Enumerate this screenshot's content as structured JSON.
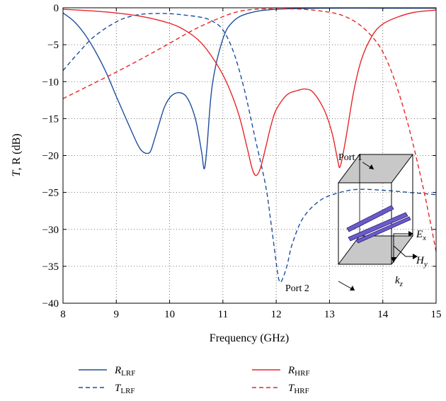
{
  "chart_data": {
    "type": "line",
    "xlabel": "Frequency (GHz)",
    "ylabel_main": "T",
    "ylabel_rest": ", R (dB)",
    "xlim": [
      8,
      15
    ],
    "ylim": [
      -40,
      0
    ],
    "xticks": [
      8,
      9,
      10,
      11,
      12,
      13,
      14,
      15
    ],
    "yticks": [
      0,
      -5,
      -10,
      -15,
      -20,
      -25,
      -30,
      -35,
      -40
    ],
    "ytick_labels": [
      "0",
      "−5",
      "−10",
      "−15",
      "−20",
      "−25",
      "−30",
      "−35",
      "−40"
    ],
    "grid": true,
    "legend_position": "bottom",
    "series": [
      {
        "name": "R",
        "sub": "LRF",
        "color": "#1f4e9b",
        "dash": "solid",
        "x": [
          8.0,
          8.2,
          8.4,
          8.6,
          8.8,
          9.0,
          9.2,
          9.4,
          9.5,
          9.6,
          9.65,
          9.7,
          9.8,
          9.9,
          10.0,
          10.1,
          10.2,
          10.3,
          10.4,
          10.5,
          10.6,
          10.65,
          10.7,
          10.8,
          11.0,
          11.2,
          11.5,
          12.0,
          13.0,
          14.0,
          15.0
        ],
        "y": [
          -0.7,
          -1.8,
          -3.5,
          -5.8,
          -8.6,
          -12.0,
          -15.3,
          -18.5,
          -19.5,
          -19.7,
          -19.3,
          -18.2,
          -15.8,
          -13.5,
          -12.2,
          -11.6,
          -11.5,
          -11.9,
          -13.2,
          -15.5,
          -19.5,
          -21.8,
          -19.0,
          -10.5,
          -4.2,
          -1.8,
          -0.7,
          -0.2,
          -0.05,
          -0.05,
          -0.05
        ]
      },
      {
        "name": "T",
        "sub": "LRF",
        "color": "#1f4e9b",
        "dash": "dashed",
        "x": [
          8.0,
          8.3,
          8.6,
          9.0,
          9.3,
          9.6,
          10.0,
          10.3,
          10.6,
          10.8,
          11.0,
          11.2,
          11.4,
          11.6,
          11.8,
          11.9,
          12.0,
          12.05,
          12.1,
          12.2,
          12.3,
          12.5,
          12.8,
          13.1,
          13.5,
          14.0,
          14.5,
          15.0
        ],
        "y": [
          -8.5,
          -6.0,
          -3.8,
          -1.9,
          -1.1,
          -0.8,
          -0.8,
          -1.0,
          -1.3,
          -1.8,
          -3.0,
          -6.0,
          -11.0,
          -17.5,
          -24.0,
          -29.0,
          -34.5,
          -36.8,
          -37.0,
          -35.0,
          -32.0,
          -28.5,
          -26.2,
          -25.2,
          -24.6,
          -24.7,
          -25.0,
          -25.3
        ]
      },
      {
        "name": "R",
        "sub": "HRF",
        "color": "#e8252a",
        "dash": "solid",
        "x": [
          8.0,
          8.5,
          9.0,
          9.5,
          10.0,
          10.3,
          10.6,
          10.9,
          11.1,
          11.3,
          11.45,
          11.55,
          11.62,
          11.7,
          11.8,
          11.9,
          12.0,
          12.2,
          12.4,
          12.55,
          12.7,
          12.9,
          13.05,
          13.15,
          13.2,
          13.3,
          13.45,
          13.6,
          13.8,
          14.0,
          14.3,
          14.6,
          15.0
        ],
        "y": [
          -0.2,
          -0.4,
          -0.7,
          -1.2,
          -2.1,
          -3.1,
          -4.8,
          -7.8,
          -10.6,
          -14.5,
          -18.8,
          -21.8,
          -22.7,
          -21.8,
          -19.0,
          -16.0,
          -13.8,
          -11.8,
          -11.2,
          -11.0,
          -11.5,
          -13.8,
          -17.0,
          -20.5,
          -21.5,
          -18.0,
          -11.5,
          -7.0,
          -3.8,
          -2.2,
          -1.2,
          -0.6,
          -0.3
        ]
      },
      {
        "name": "T",
        "sub": "HRF",
        "color": "#e8252a",
        "dash": "dashed",
        "x": [
          8.0,
          8.5,
          9.0,
          9.5,
          10.0,
          10.5,
          11.0,
          11.3,
          11.6,
          12.0,
          12.5,
          13.0,
          13.3,
          13.6,
          13.9,
          14.1,
          14.3,
          14.5,
          14.7,
          14.85,
          15.0
        ],
        "y": [
          -12.3,
          -10.5,
          -8.7,
          -6.8,
          -4.8,
          -2.8,
          -1.2,
          -0.5,
          -0.2,
          -0.15,
          -0.2,
          -0.6,
          -1.2,
          -2.5,
          -4.8,
          -7.5,
          -11.5,
          -16.5,
          -22.5,
          -27.5,
          -33.0
        ]
      }
    ]
  },
  "inset": {
    "port1_label": "Port 1",
    "port2_label": "Port 2",
    "e_field": {
      "main": "E",
      "sub": "x"
    },
    "h_field": {
      "main": "H",
      "sub": "y"
    },
    "k_vector": {
      "main": "k",
      "sub": "z"
    },
    "box_fill": "#c8c8c8",
    "strip_fill": "#6a5acd"
  }
}
